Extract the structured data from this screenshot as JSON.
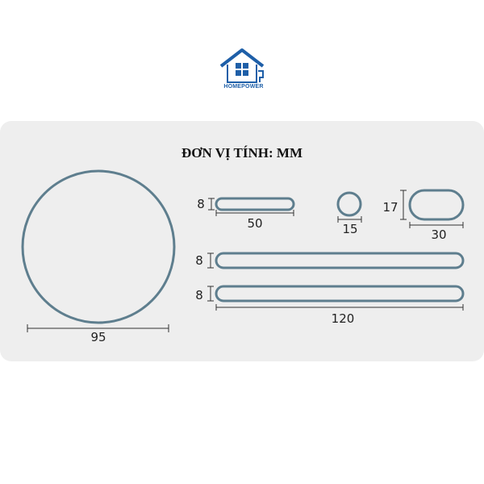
{
  "brand": {
    "name": "HOMEPOWER"
  },
  "title": "ĐƠN VỊ TÍNH: MM",
  "colors": {
    "shape_stroke": "#5e7e8e",
    "panel": "#eeeeee",
    "brand_blue": "#1e5fa8"
  },
  "shapes": [
    {
      "name": "circle-large",
      "width_label": "95"
    },
    {
      "name": "bar-short",
      "width_label": "50",
      "height_label": "8"
    },
    {
      "name": "circle-small",
      "width_label": "15"
    },
    {
      "name": "oval",
      "width_label": "30",
      "height_label": "17"
    },
    {
      "name": "bar-long-1",
      "height_label": "8"
    },
    {
      "name": "bar-long-2",
      "width_label": "120",
      "height_label": "8"
    }
  ]
}
